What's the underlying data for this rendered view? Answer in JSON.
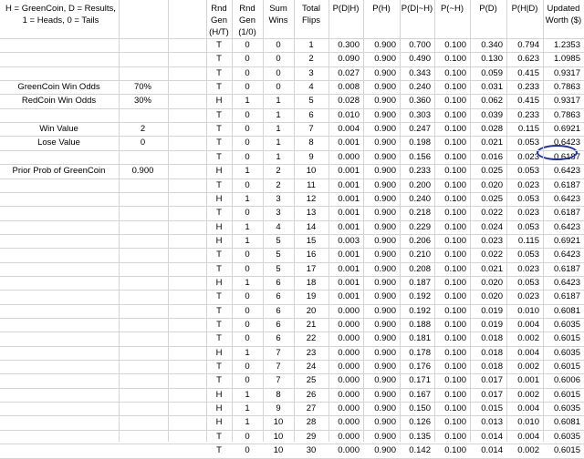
{
  "notes": {
    "line1": "H = GreenCoin, D = Results,",
    "line2": "1 = Heads, 0 = Tails"
  },
  "params": [
    {
      "label": "GreenCoin Win Odds",
      "value": "70%",
      "row": 4
    },
    {
      "label": "RedCoin Win Odds",
      "value": "30%",
      "row": 5
    },
    {
      "label": "Win Value",
      "value": "2",
      "row": 7
    },
    {
      "label": "Lose Value",
      "value": "0",
      "row": 8
    },
    {
      "label": "Prior Prob of GreenCoin",
      "value": "0.900",
      "row": 10
    }
  ],
  "headers": [
    [
      "Rnd",
      "Gen",
      "(H/T)"
    ],
    [
      "Rnd",
      "Gen",
      "(1/0)"
    ],
    [
      "Sum",
      "Wins",
      ""
    ],
    [
      "Total",
      "Flips",
      ""
    ],
    [
      "P(D|H)",
      "",
      ""
    ],
    [
      "P(H)",
      "",
      ""
    ],
    [
      "P(D|~H)",
      "",
      ""
    ],
    [
      "P(~H)",
      "",
      ""
    ],
    [
      "P(D)",
      "",
      ""
    ],
    [
      "P(H|D)",
      "",
      ""
    ],
    [
      "Updated",
      "Worth ($)",
      ""
    ]
  ],
  "rows": [
    [
      "T",
      "0",
      "0",
      "1",
      "0.300",
      "0.900",
      "0.700",
      "0.100",
      "0.340",
      "0.794",
      "1.2353"
    ],
    [
      "T",
      "0",
      "0",
      "2",
      "0.090",
      "0.900",
      "0.490",
      "0.100",
      "0.130",
      "0.623",
      "1.0985"
    ],
    [
      "T",
      "0",
      "0",
      "3",
      "0.027",
      "0.900",
      "0.343",
      "0.100",
      "0.059",
      "0.415",
      "0.9317"
    ],
    [
      "T",
      "0",
      "0",
      "4",
      "0.008",
      "0.900",
      "0.240",
      "0.100",
      "0.031",
      "0.233",
      "0.7863"
    ],
    [
      "H",
      "1",
      "1",
      "5",
      "0.028",
      "0.900",
      "0.360",
      "0.100",
      "0.062",
      "0.415",
      "0.9317"
    ],
    [
      "T",
      "0",
      "1",
      "6",
      "0.010",
      "0.900",
      "0.303",
      "0.100",
      "0.039",
      "0.233",
      "0.7863"
    ],
    [
      "T",
      "0",
      "1",
      "7",
      "0.004",
      "0.900",
      "0.247",
      "0.100",
      "0.028",
      "0.115",
      "0.6921"
    ],
    [
      "T",
      "0",
      "1",
      "8",
      "0.001",
      "0.900",
      "0.198",
      "0.100",
      "0.021",
      "0.053",
      "0.6423"
    ],
    [
      "T",
      "0",
      "1",
      "9",
      "0.000",
      "0.900",
      "0.156",
      "0.100",
      "0.016",
      "0.023",
      "0.6187"
    ],
    [
      "H",
      "1",
      "2",
      "10",
      "0.001",
      "0.900",
      "0.233",
      "0.100",
      "0.025",
      "0.053",
      "0.6423"
    ],
    [
      "T",
      "0",
      "2",
      "11",
      "0.001",
      "0.900",
      "0.200",
      "0.100",
      "0.020",
      "0.023",
      "0.6187"
    ],
    [
      "H",
      "1",
      "3",
      "12",
      "0.001",
      "0.900",
      "0.240",
      "0.100",
      "0.025",
      "0.053",
      "0.6423"
    ],
    [
      "T",
      "0",
      "3",
      "13",
      "0.001",
      "0.900",
      "0.218",
      "0.100",
      "0.022",
      "0.023",
      "0.6187"
    ],
    [
      "H",
      "1",
      "4",
      "14",
      "0.001",
      "0.900",
      "0.229",
      "0.100",
      "0.024",
      "0.053",
      "0.6423"
    ],
    [
      "H",
      "1",
      "5",
      "15",
      "0.003",
      "0.900",
      "0.206",
      "0.100",
      "0.023",
      "0.115",
      "0.6921"
    ],
    [
      "T",
      "0",
      "5",
      "16",
      "0.001",
      "0.900",
      "0.210",
      "0.100",
      "0.022",
      "0.053",
      "0.6423"
    ],
    [
      "T",
      "0",
      "5",
      "17",
      "0.001",
      "0.900",
      "0.208",
      "0.100",
      "0.021",
      "0.023",
      "0.6187"
    ],
    [
      "H",
      "1",
      "6",
      "18",
      "0.001",
      "0.900",
      "0.187",
      "0.100",
      "0.020",
      "0.053",
      "0.6423"
    ],
    [
      "T",
      "0",
      "6",
      "19",
      "0.001",
      "0.900",
      "0.192",
      "0.100",
      "0.020",
      "0.023",
      "0.6187"
    ],
    [
      "T",
      "0",
      "6",
      "20",
      "0.000",
      "0.900",
      "0.192",
      "0.100",
      "0.019",
      "0.010",
      "0.6081"
    ],
    [
      "T",
      "0",
      "6",
      "21",
      "0.000",
      "0.900",
      "0.188",
      "0.100",
      "0.019",
      "0.004",
      "0.6035"
    ],
    [
      "T",
      "0",
      "6",
      "22",
      "0.000",
      "0.900",
      "0.181",
      "0.100",
      "0.018",
      "0.002",
      "0.6015"
    ],
    [
      "H",
      "1",
      "7",
      "23",
      "0.000",
      "0.900",
      "0.178",
      "0.100",
      "0.018",
      "0.004",
      "0.6035"
    ],
    [
      "T",
      "0",
      "7",
      "24",
      "0.000",
      "0.900",
      "0.176",
      "0.100",
      "0.018",
      "0.002",
      "0.6015"
    ],
    [
      "T",
      "0",
      "7",
      "25",
      "0.000",
      "0.900",
      "0.171",
      "0.100",
      "0.017",
      "0.001",
      "0.6006"
    ],
    [
      "H",
      "1",
      "8",
      "26",
      "0.000",
      "0.900",
      "0.167",
      "0.100",
      "0.017",
      "0.002",
      "0.6015"
    ],
    [
      "H",
      "1",
      "9",
      "27",
      "0.000",
      "0.900",
      "0.150",
      "0.100",
      "0.015",
      "0.004",
      "0.6035"
    ],
    [
      "H",
      "1",
      "10",
      "28",
      "0.000",
      "0.900",
      "0.126",
      "0.100",
      "0.013",
      "0.010",
      "0.6081"
    ],
    [
      "T",
      "0",
      "10",
      "29",
      "0.000",
      "0.900",
      "0.135",
      "0.100",
      "0.014",
      "0.004",
      "0.6035"
    ],
    [
      "T",
      "0",
      "10",
      "30",
      "0.000",
      "0.900",
      "0.142",
      "0.100",
      "0.014",
      "0.002",
      "0.6015"
    ]
  ],
  "highlight": {
    "row": 8,
    "col": 10,
    "color": "#1f2f9c"
  }
}
